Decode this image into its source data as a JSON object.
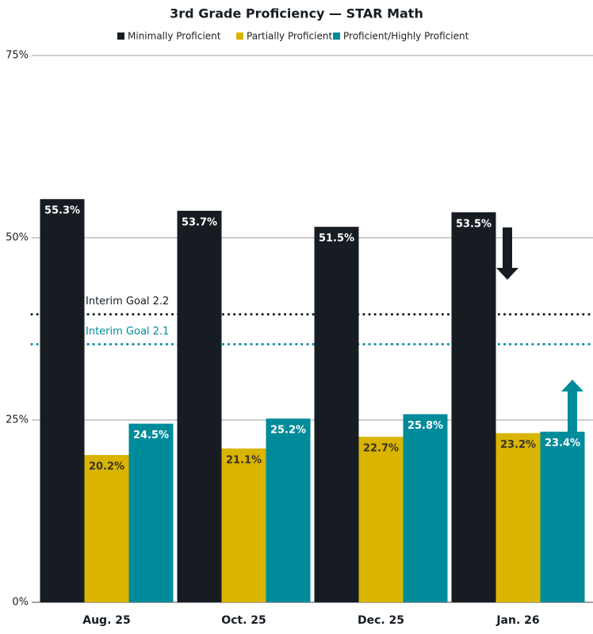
{
  "chart_data": {
    "type": "bar",
    "title": "3rd Grade Proficiency — STAR Math",
    "categories": [
      "Aug. 25",
      "Oct. 25",
      "Dec. 25",
      "Jan. 26"
    ],
    "series": [
      {
        "name": "Minimally Proficient",
        "color": "#161c22",
        "values": [
          55.3,
          53.7,
          51.5,
          53.5
        ],
        "value_labels": [
          "55.3%",
          "53.7%",
          "51.5%",
          "53.5%"
        ]
      },
      {
        "name": "Partially Proficient",
        "color": "#d9b400",
        "values": [
          20.2,
          21.1,
          22.7,
          23.2
        ],
        "value_labels": [
          "20.2%",
          "21.1%",
          "22.7%",
          "23.2%"
        ]
      },
      {
        "name": "Proficient/Highly Proficient",
        "color": "#008b9a",
        "values": [
          24.5,
          25.2,
          25.8,
          23.4
        ],
        "value_labels": [
          "24.5%",
          "25.2%",
          "25.8%",
          "23.4%"
        ]
      }
    ],
    "ylim": [
      0,
      75
    ],
    "yticks": [
      {
        "value": 0,
        "label": "0%"
      },
      {
        "value": 25,
        "label": "25%"
      },
      {
        "value": 50,
        "label": "50%"
      },
      {
        "value": 75,
        "label": "75%"
      }
    ],
    "grid": true,
    "reference_lines": [
      {
        "label": "Interim Goal 2.2",
        "value": 39.5,
        "color": "#161c22"
      },
      {
        "label": "Interim Goal 2.1",
        "value": 35.4,
        "color": "#008b9a"
      }
    ]
  }
}
